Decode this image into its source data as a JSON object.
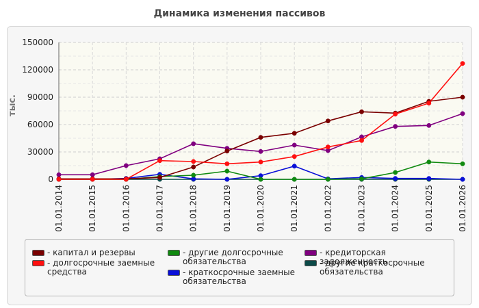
{
  "chart_data": {
    "type": "line",
    "title": "Динамика изменения пассивов",
    "ylabel": "тыс.",
    "xlabel": "",
    "ylim": [
      0,
      150000
    ],
    "yticks": [
      "150000",
      "120000",
      "90000",
      "60000",
      "30000",
      "0"
    ],
    "x": [
      "01.01.2014",
      "01.01.2015",
      "01.01.2016",
      "01.01.2017",
      "01.01.2018",
      "01.01.2019",
      "01.01.2020",
      "01.01.2021",
      "01.01.2022",
      "01.01.2023",
      "01.01.2024",
      "01.01.2025",
      "01.01.2026"
    ],
    "grid": true,
    "series": [
      {
        "name": "- капитал и резервы",
        "color": "#7a0000",
        "values": [
          500,
          500,
          500,
          2000,
          13500,
          31000,
          46000,
          50500,
          64000,
          74000,
          72500,
          85500,
          90000
        ]
      },
      {
        "name": "- долгосрочные заемные средства",
        "color": "#ff1010",
        "values": [
          0,
          0,
          0,
          20500,
          19500,
          17000,
          19000,
          25000,
          35500,
          42500,
          71500,
          83500,
          127000
        ]
      },
      {
        "name": "- другие долгосрочные обязательства",
        "color": "#108a10",
        "values": [
          0,
          0,
          0,
          3000,
          4500,
          9000,
          0,
          0,
          0,
          500,
          7500,
          19000,
          17000
        ]
      },
      {
        "name": "- краткосрочные заемные обязательства",
        "color": "#0a10d8",
        "values": [
          0,
          0,
          1000,
          5500,
          500,
          0,
          4000,
          14500,
          500,
          2000,
          1000,
          1000,
          0
        ]
      },
      {
        "name": "- кредиторская задолженность",
        "color": "#800080",
        "values": [
          5000,
          5000,
          15000,
          22500,
          39000,
          34000,
          30500,
          37500,
          31500,
          46500,
          58000,
          59000,
          72000
        ]
      },
      {
        "name": "- другие краткосрочные обязательства",
        "color": "#0c4a48",
        "values": [
          0,
          0,
          0,
          0,
          0,
          0,
          0,
          0,
          0,
          0,
          0,
          0,
          0
        ]
      }
    ],
    "legend_position": "bottom"
  }
}
